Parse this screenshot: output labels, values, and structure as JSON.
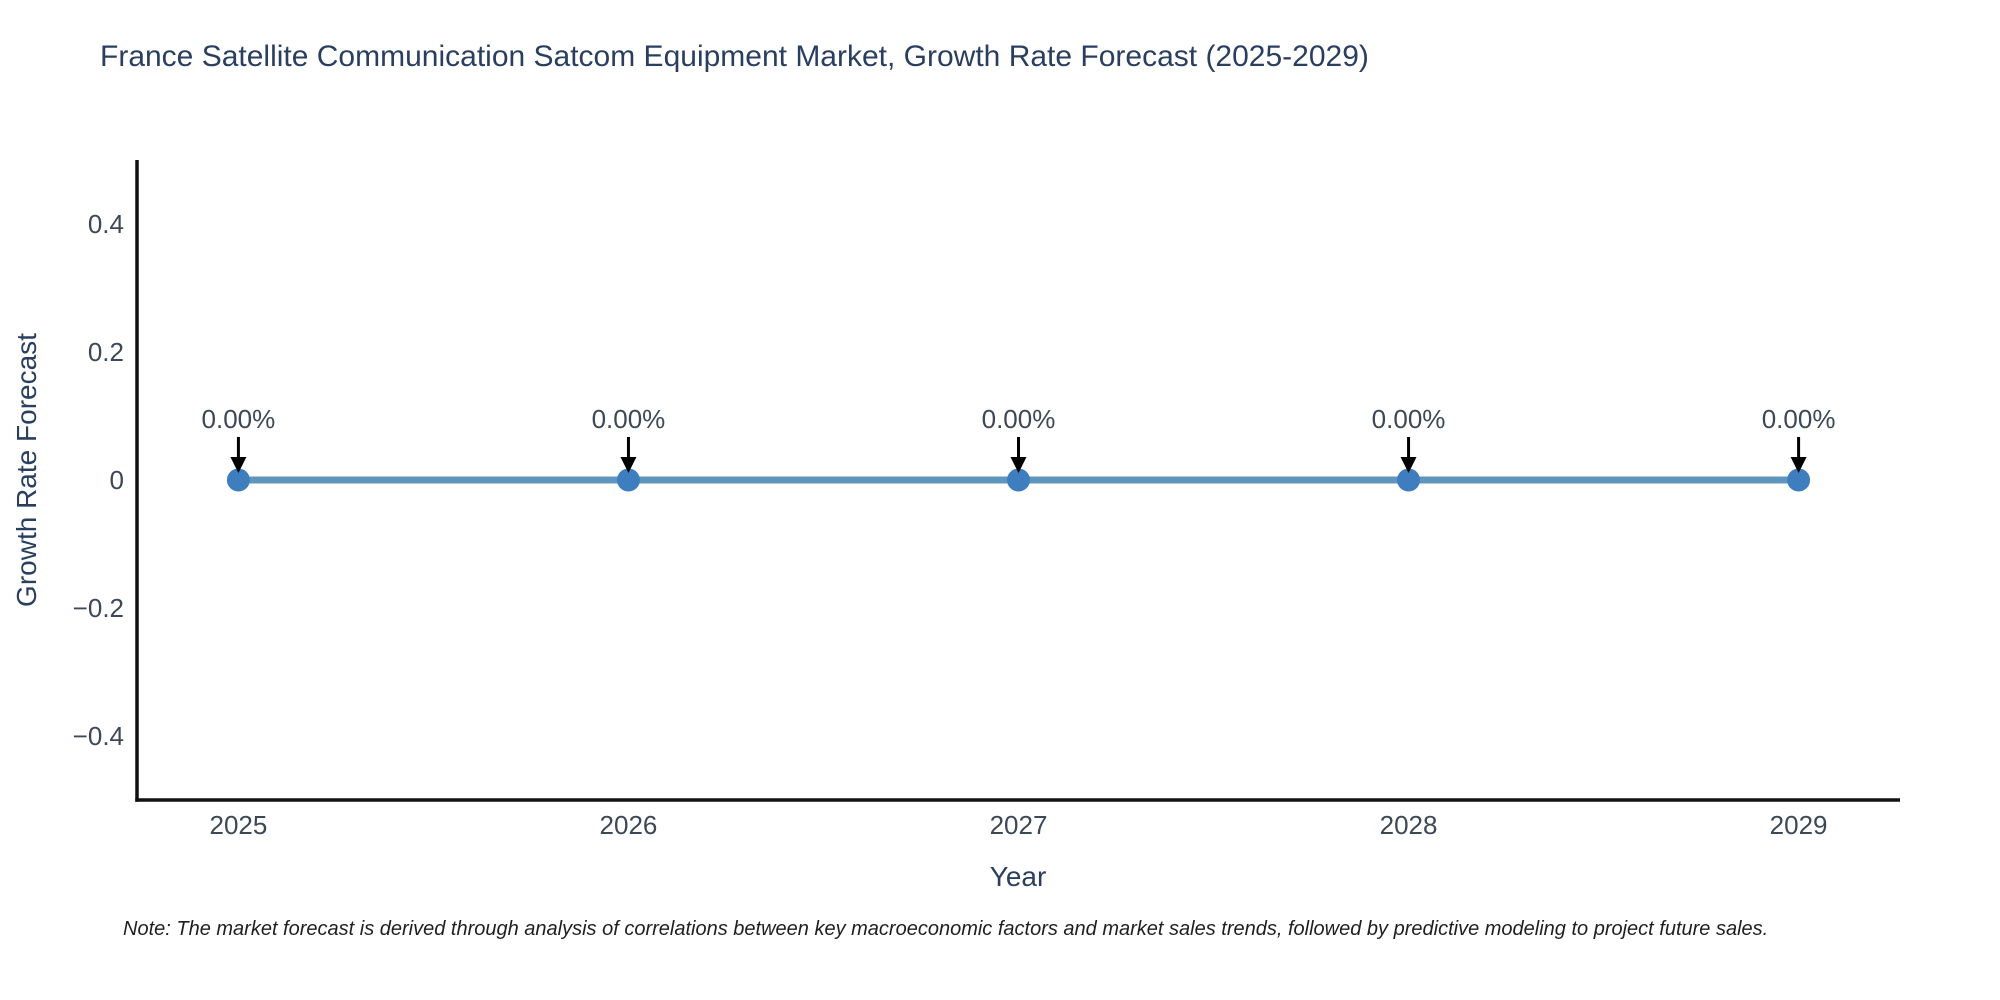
{
  "chart_data": {
    "type": "line",
    "title": "France Satellite Communication Satcom Equipment Market, Growth Rate Forecast (2025-2029)",
    "xlabel": "Year",
    "ylabel": "Growth Rate Forecast",
    "x": [
      2025,
      2026,
      2027,
      2028,
      2029
    ],
    "values": [
      0,
      0,
      0,
      0,
      0
    ],
    "point_labels": [
      "0.00%",
      "0.00%",
      "0.00%",
      "0.00%",
      "0.00%"
    ],
    "xlim": [
      2024.74,
      2029.26
    ],
    "ylim": [
      -0.5,
      0.5
    ],
    "xticks": [
      {
        "v": 2025,
        "label": "2025"
      },
      {
        "v": 2026,
        "label": "2026"
      },
      {
        "v": 2027,
        "label": "2027"
      },
      {
        "v": 2028,
        "label": "2028"
      },
      {
        "v": 2029,
        "label": "2029"
      }
    ],
    "yticks": [
      {
        "v": 0.4,
        "label": "0.4"
      },
      {
        "v": 0.2,
        "label": "0.2"
      },
      {
        "v": 0,
        "label": "0"
      },
      {
        "v": -0.2,
        "label": "−0.2"
      },
      {
        "v": -0.4,
        "label": "−0.4"
      }
    ],
    "grid": false,
    "legend": "none",
    "colors": {
      "line": "#6095be",
      "marker": "#3e7ebf",
      "axis": "#111111",
      "tick": "#3d4856",
      "annotation_text": "#3d4856",
      "arrow": "#000000",
      "title": "#2a3f5f"
    }
  },
  "note": {
    "text": "Note: The market forecast is derived through analysis of correlations between key macroeconomic factors and market sales trends, followed by predictive modeling to project future sales."
  }
}
